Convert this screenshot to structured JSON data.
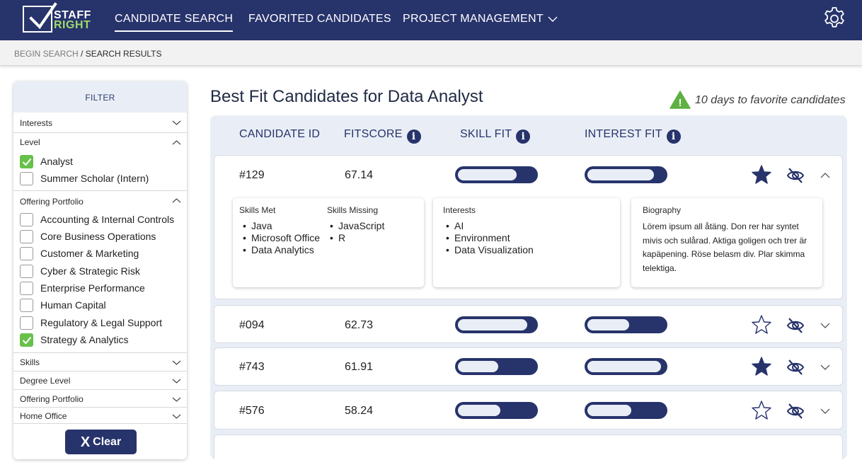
{
  "brand": {
    "line1": "STAFF",
    "line2": "RIGHT",
    "accent": "#9fd86b"
  },
  "nav": {
    "items": [
      "CANDIDATE SEARCH",
      "FAVORITED CANDIDATES",
      "PROJECT MANAGEMENT"
    ],
    "active": "CANDIDATE SEARCH",
    "background": "#27336b"
  },
  "breadcrumb": {
    "parent": "BEGIN SEARCH",
    "separator": " / ",
    "current": "SEARCH RESULTS"
  },
  "filter": {
    "title": "FILTER",
    "sections": [
      {
        "title": "Interests",
        "expanded": false
      },
      {
        "title": "Level",
        "expanded": true,
        "options": [
          {
            "label": "Analyst",
            "checked": true
          },
          {
            "label": "Summer Scholar (Intern)",
            "checked": false
          }
        ]
      },
      {
        "title": "Offering Portfolio",
        "expanded": true,
        "options": [
          {
            "label": "Accounting & Internal Controls",
            "checked": false
          },
          {
            "label": "Core Business Operations",
            "checked": false
          },
          {
            "label": "Customer & Marketing",
            "checked": false
          },
          {
            "label": "Cyber & Strategic Risk",
            "checked": false
          },
          {
            "label": "Enterprise Performance",
            "checked": false
          },
          {
            "label": "Human Capital",
            "checked": false
          },
          {
            "label": "Regulatory & Legal Support",
            "checked": false
          },
          {
            "label": "Strategy & Analytics",
            "checked": true
          }
        ]
      },
      {
        "title": "Skills",
        "expanded": false
      },
      {
        "title": "Degree Level",
        "expanded": false
      },
      {
        "title": "Offering Portfolio",
        "expanded": false
      },
      {
        "title": "Home Office",
        "expanded": false
      }
    ],
    "clear_label": "Clear",
    "clear_icon": "X"
  },
  "main": {
    "title": "Best Fit Candidates for Data Analyst",
    "notice": "10 days to favorite candidates",
    "notice_icon": "!",
    "columns": [
      "CANDIDATE ID",
      "FITSCORE",
      "SKILL FIT",
      "INTEREST FIT"
    ],
    "info_glyph": "i",
    "candidates": [
      {
        "id": "#129",
        "fitscore": "67.14",
        "skill_fit": 0.76,
        "interest_fit": 0.86,
        "favorited": true,
        "expanded": true,
        "details": {
          "skills_met_label": "Skills Met",
          "skills_met": [
            "Java",
            "Microsoft Office",
            "Data Analytics"
          ],
          "skills_missing_label": "Skills Missing",
          "skills_missing": [
            "JavaScript",
            "R"
          ],
          "interests_label": "Interests",
          "interests": [
            "AI",
            "Environment",
            "Data Visualization"
          ],
          "biography_label": "Biography",
          "biography": "Lörem ipsum all åtäng. Don rer har syntet mivis och sulårad. Aktiga goligen och trer är kapäpening. Röse belasm div. Plar skimma telektiga."
        }
      },
      {
        "id": "#094",
        "fitscore": "62.73",
        "skill_fit": 0.9,
        "interest_fit": 0.54,
        "favorited": false,
        "expanded": false
      },
      {
        "id": "#743",
        "fitscore": "61.91",
        "skill_fit": 0.52,
        "interest_fit": 0.95,
        "favorited": true,
        "expanded": false
      },
      {
        "id": "#576",
        "fitscore": "58.24",
        "skill_fit": 0.55,
        "interest_fit": 0.57,
        "favorited": false,
        "expanded": false
      }
    ]
  }
}
